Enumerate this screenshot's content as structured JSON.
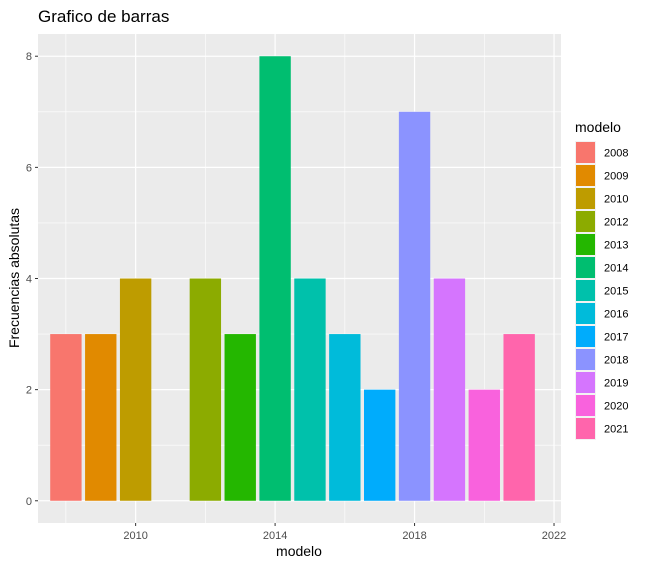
{
  "chart_data": {
    "type": "bar",
    "title": "Grafico de barras",
    "xlabel": "modelo",
    "ylabel": "Frecuencias absolutas",
    "x": [
      2008,
      2009,
      2010,
      2012,
      2013,
      2014,
      2015,
      2016,
      2017,
      2018,
      2019,
      2020,
      2021
    ],
    "values": [
      3,
      3,
      4,
      4,
      3,
      8,
      4,
      3,
      2,
      7,
      4,
      2,
      3
    ],
    "colors": [
      "#F8766D",
      "#E18A00",
      "#BE9C00",
      "#8CAB00",
      "#24B700",
      "#00BE70",
      "#00C1AB",
      "#00BBDA",
      "#00ACFC",
      "#8B93FF",
      "#D575FE",
      "#F962DD",
      "#FF65AC"
    ],
    "xlim": [
      2007.2,
      2022.2
    ],
    "ylim": [
      -0.4,
      8.4
    ],
    "xticks": [
      2010,
      2014,
      2018,
      2022
    ],
    "yticks": [
      0,
      2,
      4,
      6,
      8
    ],
    "grid": true,
    "panel_background": "#EBEBEB",
    "legend": {
      "title": "modelo",
      "position": "right",
      "labels": [
        "2008",
        "2009",
        "2010",
        "2012",
        "2013",
        "2014",
        "2015",
        "2016",
        "2017",
        "2018",
        "2019",
        "2020",
        "2021"
      ]
    }
  }
}
